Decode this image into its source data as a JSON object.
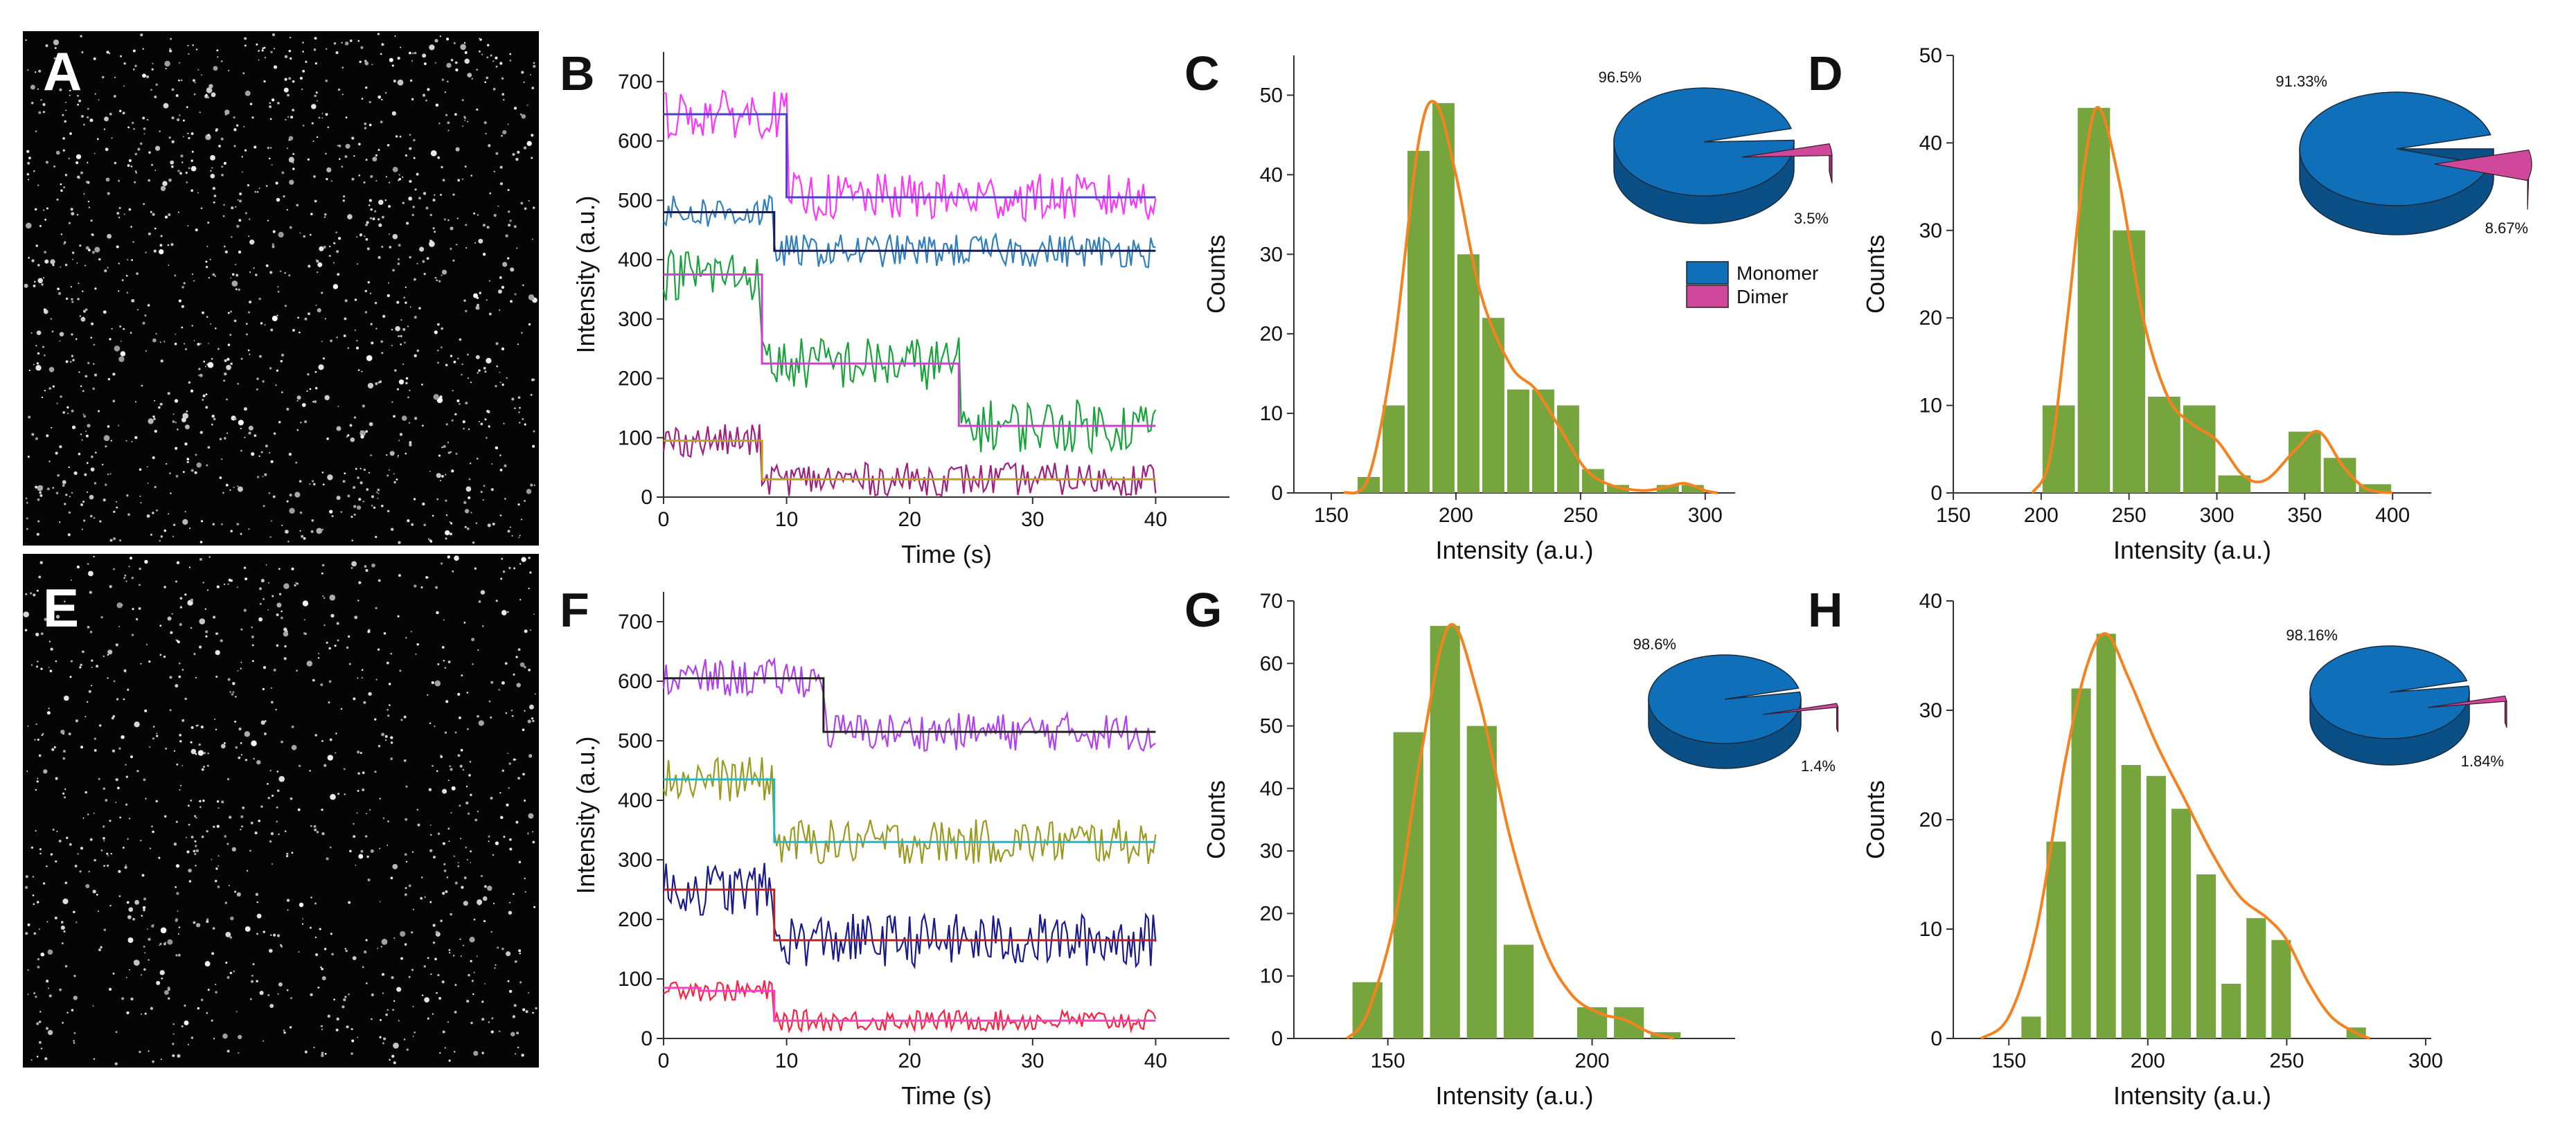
{
  "figure": {
    "panel_letters": {
      "A": "A",
      "B": "B",
      "C": "C",
      "D": "D",
      "E": "E",
      "F": "F",
      "G": "G",
      "H": "H"
    }
  },
  "colors": {
    "bar_fill": "#77a53d",
    "fit_line": "#f5821f",
    "monomer": "#0f6fb8",
    "dimer": "#d0489b",
    "axis": "#333333"
  },
  "chart_data": [
    {
      "panel": "B",
      "type": "line",
      "xlabel": "Time (s)",
      "ylabel": "Intensity (a.u.)",
      "xlim": [
        0,
        46
      ],
      "ylim": [
        0,
        750
      ],
      "xticks": [
        0,
        10,
        20,
        30,
        40
      ],
      "yticks": [
        0,
        100,
        200,
        300,
        400,
        500,
        600,
        700
      ],
      "traces": [
        {
          "color": "#ff33ff",
          "noise": 40,
          "steps": [
            [
              0,
              645
            ],
            [
              10,
              505
            ],
            [
              40,
              505
            ]
          ],
          "fit": {
            "color": "#4a3fd0",
            "steps": [
              [
                0,
                645
              ],
              [
                10,
                505
              ],
              [
                40,
                505
              ]
            ]
          }
        },
        {
          "color": "#2f7fbf",
          "noise": 28,
          "steps": [
            [
              0,
              480
            ],
            [
              9,
              415
            ],
            [
              40,
              415
            ]
          ],
          "fit": {
            "color": "#1a1a5a",
            "steps": [
              [
                0,
                480
              ],
              [
                9,
                415
              ],
              [
                40,
                415
              ]
            ]
          }
        },
        {
          "color": "#17a33a",
          "noise": 45,
          "steps": [
            [
              0,
              375
            ],
            [
              8,
              225
            ],
            [
              24,
              120
            ],
            [
              40,
              120
            ]
          ],
          "fit": {
            "color": "#d040d0",
            "steps": [
              [
                0,
                375
              ],
              [
                8,
                225
              ],
              [
                24,
                120
              ],
              [
                40,
                120
              ]
            ]
          }
        },
        {
          "color": "#a02080",
          "noise": 28,
          "steps": [
            [
              0,
              95
            ],
            [
              8,
              30
            ],
            [
              40,
              30
            ]
          ],
          "fit": {
            "color": "#c0a020",
            "steps": [
              [
                0,
                95
              ],
              [
                8,
                30
              ],
              [
                40,
                30
              ]
            ]
          }
        }
      ]
    },
    {
      "panel": "F",
      "type": "line",
      "xlabel": "Time (s)",
      "ylabel": "Intensity (a.u.)",
      "xlim": [
        0,
        46
      ],
      "ylim": [
        0,
        750
      ],
      "xticks": [
        0,
        10,
        20,
        30,
        40
      ],
      "yticks": [
        0,
        100,
        200,
        300,
        400,
        500,
        600,
        700
      ],
      "traces": [
        {
          "color": "#b040f0",
          "noise": 32,
          "steps": [
            [
              0,
              605
            ],
            [
              13,
              515
            ],
            [
              40,
              515
            ]
          ],
          "fit": {
            "color": "#222222",
            "steps": [
              [
                0,
                605
              ],
              [
                13,
                515
              ],
              [
                40,
                515
              ]
            ]
          }
        },
        {
          "color": "#9a9a20",
          "noise": 38,
          "steps": [
            [
              0,
              435
            ],
            [
              9,
              330
            ],
            [
              40,
              330
            ]
          ],
          "fit": {
            "color": "#20b8c8",
            "steps": [
              [
                0,
                435
              ],
              [
                9,
                330
              ],
              [
                40,
                330
              ]
            ]
          }
        },
        {
          "color": "#1a1a90",
          "noise": 45,
          "steps": [
            [
              0,
              250
            ],
            [
              9,
              165
            ],
            [
              40,
              165
            ]
          ],
          "fit": {
            "color": "#c02020",
            "steps": [
              [
                0,
                250
              ],
              [
                9,
                165
              ],
              [
                40,
                165
              ]
            ]
          }
        },
        {
          "color": "#ff2040",
          "noise": 18,
          "steps": [
            [
              0,
              85
            ],
            [
              3,
              80
            ],
            [
              9,
              30
            ],
            [
              40,
              30
            ]
          ],
          "fit": {
            "color": "#ff40c0",
            "steps": [
              [
                0,
                85
              ],
              [
                3,
                80
              ],
              [
                9,
                30
              ],
              [
                40,
                30
              ]
            ]
          }
        }
      ]
    },
    {
      "panel": "C",
      "type": "bar",
      "xlabel": "Intensity (a.u.)",
      "ylabel": "Counts",
      "xlim": [
        135,
        312
      ],
      "ylim": [
        0,
        55
      ],
      "xticks": [
        150,
        200,
        250,
        300
      ],
      "yticks": [
        0,
        10,
        20,
        30,
        40,
        50
      ],
      "bin_width": 10,
      "bins": [
        165,
        175,
        185,
        195,
        205,
        215,
        225,
        235,
        245,
        255,
        265,
        275,
        285,
        295
      ],
      "values": [
        2,
        11,
        43,
        49,
        30,
        22,
        13,
        13,
        11,
        3,
        1,
        0,
        1,
        1
      ],
      "fit": [
        [
          155,
          0
        ],
        [
          165,
          2
        ],
        [
          175,
          18
        ],
        [
          185,
          44
        ],
        [
          192,
          49
        ],
        [
          200,
          40
        ],
        [
          210,
          25
        ],
        [
          222,
          16
        ],
        [
          232,
          13
        ],
        [
          242,
          8
        ],
        [
          252,
          3
        ],
        [
          262,
          1
        ],
        [
          275,
          0.3
        ],
        [
          285,
          0.8
        ],
        [
          292,
          1.2
        ],
        [
          300,
          0.3
        ],
        [
          305,
          0
        ]
      ],
      "pie": {
        "labels": [
          "Monomer",
          "Dimer"
        ],
        "values": [
          96.5,
          3.5
        ],
        "value_labels": [
          "96.5%",
          "3.5%"
        ],
        "legend": true
      }
    },
    {
      "panel": "D",
      "type": "bar",
      "xlabel": "Intensity (a.u.)",
      "ylabel": "Counts",
      "xlim": [
        150,
        422
      ],
      "ylim": [
        0,
        50
      ],
      "xticks": [
        150,
        200,
        250,
        300,
        350,
        400
      ],
      "yticks": [
        0,
        10,
        20,
        30,
        40,
        50
      ],
      "bin_width": 20,
      "bins": [
        210,
        230,
        250,
        270,
        290,
        310,
        330,
        350,
        370,
        390
      ],
      "values": [
        10,
        44,
        30,
        11,
        10,
        2,
        0,
        7,
        4,
        1
      ],
      "fit": [
        [
          195,
          0
        ],
        [
          205,
          4
        ],
        [
          215,
          20
        ],
        [
          225,
          38
        ],
        [
          233,
          44
        ],
        [
          245,
          35
        ],
        [
          258,
          20
        ],
        [
          272,
          11
        ],
        [
          285,
          8
        ],
        [
          300,
          6
        ],
        [
          315,
          2
        ],
        [
          328,
          1.5
        ],
        [
          345,
          5
        ],
        [
          358,
          7
        ],
        [
          372,
          3
        ],
        [
          385,
          0.5
        ],
        [
          400,
          0
        ]
      ],
      "pie": {
        "labels": [
          "Monomer",
          "Dimer"
        ],
        "values": [
          91.33,
          8.67
        ],
        "value_labels": [
          "91.33%",
          "8.67%"
        ],
        "legend": false
      }
    },
    {
      "panel": "G",
      "type": "bar",
      "xlabel": "Intensity (a.u.)",
      "ylabel": "Counts",
      "xlim": [
        127,
        235
      ],
      "ylim": [
        0,
        70
      ],
      "xticks": [
        150,
        200
      ],
      "yticks": [
        0,
        10,
        20,
        30,
        40,
        50,
        60,
        70
      ],
      "bin_width": 8,
      "bins": [
        145,
        155,
        164,
        173,
        182,
        191,
        200,
        209,
        218
      ],
      "values": [
        9,
        49,
        66,
        50,
        15,
        0,
        5,
        5,
        1
      ],
      "fit": [
        [
          140,
          0
        ],
        [
          145,
          4
        ],
        [
          152,
          20
        ],
        [
          158,
          45
        ],
        [
          165,
          66
        ],
        [
          172,
          55
        ],
        [
          180,
          32
        ],
        [
          188,
          15
        ],
        [
          195,
          7
        ],
        [
          202,
          4
        ],
        [
          208,
          3
        ],
        [
          214,
          1
        ],
        [
          220,
          0
        ]
      ],
      "pie": {
        "labels": [
          "Monomer",
          "Dimer"
        ],
        "values": [
          98.6,
          1.4
        ],
        "value_labels": [
          "98.6%",
          "1.4%"
        ],
        "legend": false
      }
    },
    {
      "panel": "H",
      "type": "bar",
      "xlabel": "Intensity (a.u.)",
      "ylabel": "Counts",
      "xlim": [
        130,
        302
      ],
      "ylim": [
        0,
        40
      ],
      "xticks": [
        150,
        200,
        250,
        300
      ],
      "yticks": [
        0,
        10,
        20,
        30,
        40
      ],
      "bin_width": 8,
      "bins": [
        158,
        167,
        176,
        185,
        194,
        203,
        212,
        221,
        230,
        239,
        248,
        257,
        266,
        275
      ],
      "values": [
        2,
        18,
        32,
        37,
        25,
        24,
        21,
        15,
        5,
        11,
        9,
        0,
        0,
        1
      ],
      "fit": [
        [
          140,
          0
        ],
        [
          150,
          2
        ],
        [
          160,
          10
        ],
        [
          170,
          25
        ],
        [
          178,
          34
        ],
        [
          185,
          37
        ],
        [
          193,
          33
        ],
        [
          203,
          27
        ],
        [
          213,
          22
        ],
        [
          223,
          17
        ],
        [
          233,
          13
        ],
        [
          243,
          11
        ],
        [
          250,
          9
        ],
        [
          258,
          5
        ],
        [
          266,
          2
        ],
        [
          275,
          0.5
        ],
        [
          280,
          0
        ]
      ],
      "pie": {
        "labels": [
          "Monomer",
          "Dimer"
        ],
        "values": [
          98.16,
          1.84
        ],
        "value_labels": [
          "98.16%",
          "1.84%"
        ],
        "legend": false
      }
    }
  ]
}
